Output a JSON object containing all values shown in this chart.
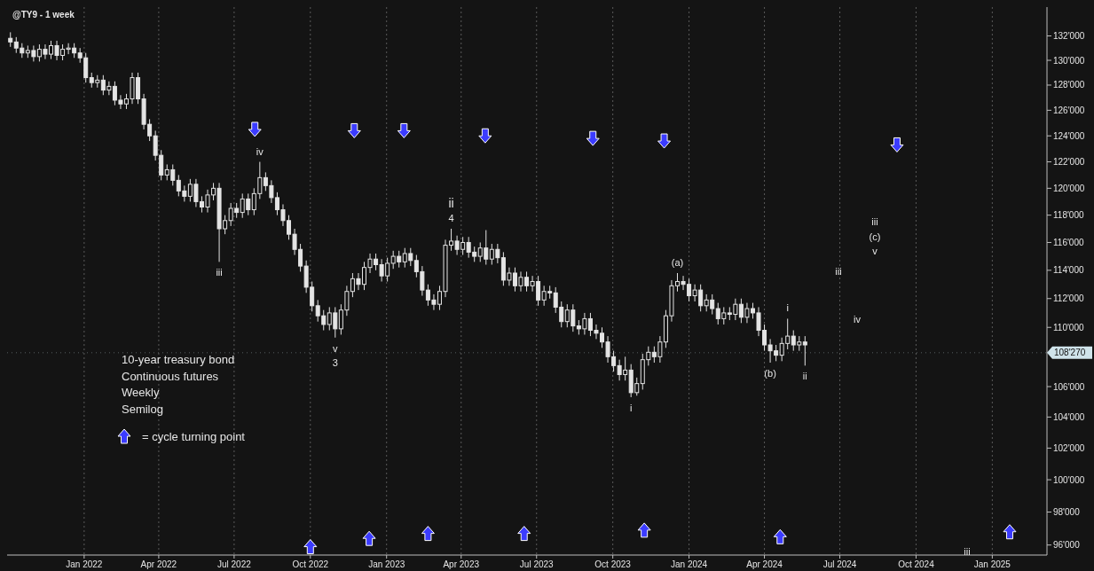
{
  "chart_data": {
    "type": "candlestick",
    "title": "@TY9 - 1 week",
    "color": "#e4e4e4",
    "log": true,
    "grid": "x",
    "legend": "bottom left",
    "x": [
      "2021-10-04",
      "2021-10-11",
      "2021-10-18",
      "2021-10-25",
      "2021-11-01",
      "2021-11-08",
      "2021-11-15",
      "2021-11-22",
      "2021-11-29",
      "2021-12-06",
      "2021-12-13",
      "2021-12-20",
      "2021-12-27",
      "2022-01-03",
      "2022-01-10",
      "2022-01-17",
      "2022-01-24",
      "2022-01-31",
      "2022-02-07",
      "2022-02-14",
      "2022-02-21",
      "2022-02-28",
      "2022-03-07",
      "2022-03-14",
      "2022-03-21",
      "2022-03-28",
      "2022-04-04",
      "2022-04-11",
      "2022-04-18",
      "2022-04-25",
      "2022-05-02",
      "2022-05-09",
      "2022-05-16",
      "2022-05-23",
      "2022-05-30",
      "2022-06-06",
      "2022-06-13",
      "2022-06-20",
      "2022-06-27",
      "2022-07-04",
      "2022-07-11",
      "2022-07-18",
      "2022-07-25",
      "2022-08-01",
      "2022-08-08",
      "2022-08-15",
      "2022-08-22",
      "2022-08-29",
      "2022-09-05",
      "2022-09-12",
      "2022-09-19",
      "2022-09-26",
      "2022-10-03",
      "2022-10-10",
      "2022-10-17",
      "2022-10-24",
      "2022-10-31",
      "2022-11-07",
      "2022-11-14",
      "2022-11-21",
      "2022-11-28",
      "2022-12-05",
      "2022-12-12",
      "2022-12-19",
      "2022-12-26",
      "2023-01-02",
      "2023-01-09",
      "2023-01-16",
      "2023-01-23",
      "2023-01-30",
      "2023-02-06",
      "2023-02-13",
      "2023-02-20",
      "2023-02-27",
      "2023-03-06",
      "2023-03-13",
      "2023-03-20",
      "2023-03-27",
      "2023-04-03",
      "2023-04-10",
      "2023-04-17",
      "2023-04-24",
      "2023-05-01",
      "2023-05-08",
      "2023-05-15",
      "2023-05-22",
      "2023-05-29",
      "2023-06-05",
      "2023-06-12",
      "2023-06-19",
      "2023-06-26",
      "2023-07-03",
      "2023-07-10",
      "2023-07-17",
      "2023-07-24",
      "2023-07-31",
      "2023-08-07",
      "2023-08-14",
      "2023-08-21",
      "2023-08-28",
      "2023-09-04",
      "2023-09-11",
      "2023-09-18",
      "2023-09-25",
      "2023-10-02",
      "2023-10-09",
      "2023-10-16",
      "2023-10-23",
      "2023-10-30",
      "2023-11-06",
      "2023-11-13",
      "2023-11-20",
      "2023-11-27",
      "2023-12-04",
      "2023-12-11",
      "2023-12-18",
      "2023-12-25",
      "2024-01-01",
      "2024-01-08",
      "2024-01-15",
      "2024-01-22",
      "2024-01-29",
      "2024-02-05",
      "2024-02-12",
      "2024-02-19",
      "2024-02-26",
      "2024-03-04",
      "2024-03-11",
      "2024-03-18",
      "2024-03-25",
      "2024-04-01",
      "2024-04-08",
      "2024-04-15",
      "2024-04-22",
      "2024-04-29",
      "2024-05-06",
      "2024-05-13",
      "2024-05-20"
    ],
    "ohlc": [
      [
        131800,
        132300,
        131100,
        131500
      ],
      [
        131500,
        131900,
        130600,
        131000
      ],
      [
        131000,
        131400,
        130200,
        130600
      ],
      [
        130600,
        131200,
        130200,
        130800
      ],
      [
        130800,
        131200,
        129900,
        130300
      ],
      [
        130300,
        131300,
        129900,
        130900
      ],
      [
        130900,
        131300,
        130100,
        130500
      ],
      [
        130500,
        131600,
        130100,
        131200
      ],
      [
        131200,
        131600,
        130000,
        130400
      ],
      [
        130400,
        131300,
        130000,
        130900
      ],
      [
        130900,
        131400,
        130500,
        131000
      ],
      [
        131000,
        131400,
        130200,
        130600
      ],
      [
        130600,
        131000,
        129800,
        130200
      ],
      [
        130200,
        130600,
        128200,
        128600
      ],
      [
        128600,
        129000,
        127800,
        128200
      ],
      [
        128200,
        128800,
        127800,
        128400
      ],
      [
        128400,
        128800,
        127200,
        127600
      ],
      [
        127600,
        128300,
        127200,
        127900
      ],
      [
        127900,
        128300,
        126400,
        126800
      ],
      [
        126800,
        127200,
        126100,
        126500
      ],
      [
        126500,
        127300,
        126100,
        126900
      ],
      [
        126900,
        129000,
        126500,
        128600
      ],
      [
        128600,
        129000,
        126500,
        126900
      ],
      [
        126900,
        127300,
        124500,
        124900
      ],
      [
        124900,
        125300,
        123600,
        124000
      ],
      [
        124000,
        124400,
        122100,
        122500
      ],
      [
        122500,
        122900,
        120600,
        121000
      ],
      [
        121000,
        121800,
        120600,
        121400
      ],
      [
        121400,
        121800,
        120200,
        120600
      ],
      [
        120600,
        121000,
        119400,
        119800
      ],
      [
        119800,
        120200,
        119000,
        119400
      ],
      [
        119400,
        120700,
        119000,
        120300
      ],
      [
        120300,
        120700,
        118600,
        119000
      ],
      [
        119000,
        119400,
        118200,
        118600
      ],
      [
        118600,
        119900,
        118200,
        119500
      ],
      [
        119500,
        120400,
        119100,
        120000
      ],
      [
        120000,
        120400,
        114600,
        117000
      ],
      [
        117000,
        118000,
        116600,
        117600
      ],
      [
        117600,
        118900,
        117200,
        118500
      ],
      [
        118500,
        118900,
        117800,
        118200
      ],
      [
        118200,
        119600,
        117800,
        119200
      ],
      [
        119200,
        119600,
        118000,
        118400
      ],
      [
        118400,
        120000,
        118000,
        119600
      ],
      [
        119600,
        122000,
        119200,
        120800
      ],
      [
        120800,
        121200,
        119800,
        120200
      ],
      [
        120200,
        120600,
        118900,
        119300
      ],
      [
        119300,
        119700,
        118000,
        118400
      ],
      [
        118400,
        118800,
        117200,
        117600
      ],
      [
        117600,
        118000,
        116200,
        116600
      ],
      [
        116600,
        117000,
        115100,
        115500
      ],
      [
        115500,
        115900,
        113900,
        114300
      ],
      [
        114300,
        114700,
        112400,
        112800
      ],
      [
        112800,
        113200,
        111100,
        111500
      ],
      [
        111500,
        111900,
        110400,
        110800
      ],
      [
        110800,
        111200,
        109800,
        110200
      ],
      [
        110200,
        111400,
        109800,
        111000
      ],
      [
        111000,
        111400,
        109300,
        109900
      ],
      [
        109900,
        111600,
        109500,
        111200
      ],
      [
        111200,
        112900,
        110800,
        112500
      ],
      [
        112500,
        113800,
        112100,
        113400
      ],
      [
        113400,
        113800,
        112600,
        113000
      ],
      [
        113000,
        114600,
        112600,
        114200
      ],
      [
        114200,
        115200,
        113800,
        114800
      ],
      [
        114800,
        115200,
        114000,
        114400
      ],
      [
        114400,
        114800,
        113200,
        113600
      ],
      [
        113600,
        114900,
        113200,
        114500
      ],
      [
        114500,
        115400,
        114100,
        115000
      ],
      [
        115000,
        115400,
        114200,
        114600
      ],
      [
        114600,
        115600,
        114200,
        115200
      ],
      [
        115200,
        115600,
        114300,
        114700
      ],
      [
        114700,
        115100,
        113500,
        113900
      ],
      [
        113900,
        114300,
        112200,
        112600
      ],
      [
        112600,
        113000,
        111500,
        111900
      ],
      [
        111900,
        112300,
        111200,
        111600
      ],
      [
        111600,
        112900,
        111200,
        112500
      ],
      [
        112500,
        116200,
        112100,
        115800
      ],
      [
        115800,
        117000,
        115400,
        116100
      ],
      [
        116100,
        116500,
        115100,
        115500
      ],
      [
        115500,
        116400,
        115100,
        116000
      ],
      [
        116000,
        116400,
        114900,
        115300
      ],
      [
        115300,
        115700,
        114600,
        115000
      ],
      [
        115000,
        116000,
        114600,
        115600
      ],
      [
        115600,
        116900,
        114400,
        114800
      ],
      [
        114800,
        115900,
        114400,
        115500
      ],
      [
        115500,
        115900,
        114500,
        114900
      ],
      [
        114900,
        115300,
        112900,
        113300
      ],
      [
        113300,
        114200,
        112900,
        113800
      ],
      [
        113800,
        114200,
        112500,
        112900
      ],
      [
        112900,
        113900,
        112500,
        113500
      ],
      [
        113500,
        113900,
        112500,
        112900
      ],
      [
        112900,
        113600,
        112500,
        113200
      ],
      [
        113200,
        113600,
        111500,
        111900
      ],
      [
        111900,
        112900,
        111500,
        112500
      ],
      [
        112500,
        112900,
        112000,
        112400
      ],
      [
        112400,
        112800,
        111000,
        111400
      ],
      [
        111400,
        111800,
        110000,
        110400
      ],
      [
        110400,
        111600,
        110000,
        111200
      ],
      [
        111200,
        111600,
        109700,
        110100
      ],
      [
        110100,
        110500,
        109500,
        109900
      ],
      [
        109900,
        111000,
        109500,
        110600
      ],
      [
        110600,
        111000,
        109400,
        109800
      ],
      [
        109800,
        110200,
        109200,
        109600
      ],
      [
        109600,
        110000,
        108600,
        109000
      ],
      [
        109000,
        109400,
        107600,
        108000
      ],
      [
        108000,
        108400,
        107000,
        107400
      ],
      [
        107400,
        107800,
        106400,
        106800
      ],
      [
        106800,
        108000,
        106400,
        107100
      ],
      [
        107100,
        107500,
        105300,
        105600
      ],
      [
        105600,
        106600,
        105400,
        106200
      ],
      [
        106200,
        108200,
        105800,
        107800
      ],
      [
        107800,
        108700,
        107400,
        108300
      ],
      [
        108300,
        108700,
        107600,
        108000
      ],
      [
        108000,
        109400,
        107600,
        109000
      ],
      [
        109000,
        111200,
        108600,
        110800
      ],
      [
        110800,
        113300,
        110400,
        112900
      ],
      [
        112900,
        113800,
        112500,
        113200
      ],
      [
        113200,
        113600,
        112600,
        113000
      ],
      [
        113000,
        113400,
        111800,
        112200
      ],
      [
        112200,
        113000,
        111800,
        112600
      ],
      [
        112600,
        113000,
        111100,
        111500
      ],
      [
        111500,
        112300,
        111100,
        111900
      ],
      [
        111900,
        112300,
        110900,
        111300
      ],
      [
        111300,
        111700,
        110200,
        110600
      ],
      [
        110600,
        111400,
        110200,
        111000
      ],
      [
        111000,
        111400,
        110500,
        110900
      ],
      [
        110900,
        112000,
        110500,
        111600
      ],
      [
        111600,
        112000,
        110300,
        110700
      ],
      [
        110700,
        111700,
        110300,
        111300
      ],
      [
        111300,
        111700,
        110600,
        111000
      ],
      [
        111000,
        111400,
        109400,
        109800
      ],
      [
        109800,
        110200,
        108400,
        108800
      ],
      [
        108800,
        109200,
        107600,
        108400
      ],
      [
        108400,
        108800,
        107700,
        108100
      ],
      [
        108100,
        109300,
        107700,
        108900
      ],
      [
        108900,
        110600,
        108500,
        109400
      ],
      [
        109400,
        109800,
        108400,
        108800
      ],
      [
        108800,
        109400,
        108400,
        109000
      ],
      [
        109000,
        109400,
        107400,
        108800
      ]
    ],
    "series": [
      {
        "type": "scatter",
        "name": "= cycle turning point",
        "color": "#3b3bff",
        "x": [
          "2022-07-26",
          "2022-11-23",
          "2023-01-22",
          "2023-04-30",
          "2023-09-07",
          "2023-12-02",
          "2024-09-08",
          "2022-10-01",
          "2022-12-11",
          "2023-02-20",
          "2023-06-16",
          "2023-11-08",
          "2024-04-20",
          "2025-01-22"
        ],
        "values": [
          124500,
          124400,
          124400,
          124000,
          123800,
          123600,
          123300,
          95900,
          96400,
          96700,
          96700,
          96900,
          96500,
          96800
        ]
      }
    ],
    "xlim": [
      "2021-09-30",
      "2025-03-08"
    ],
    "xticks": [
      {
        "value": "2022-01",
        "label": "Jan 2022"
      },
      {
        "value": "2022-04",
        "label": "Apr 2022"
      },
      {
        "value": "2022-07",
        "label": "Jul 2022"
      },
      {
        "value": "2022-10",
        "label": "Oct 2022"
      },
      {
        "value": "2023-01",
        "label": "Jan 2023"
      },
      {
        "value": "2023-04",
        "label": "Apr 2023"
      },
      {
        "value": "2023-07",
        "label": "Jul 2023"
      },
      {
        "value": "2023-10",
        "label": "Oct 2023"
      },
      {
        "value": "2024-01",
        "label": "Jan 2024"
      },
      {
        "value": "2024-04",
        "label": "Apr 2024"
      },
      {
        "value": "2024-07",
        "label": "Jul 2024"
      },
      {
        "value": "2024-10",
        "label": "Oct 2024"
      },
      {
        "value": "2025-01",
        "label": "Jan 2025"
      }
    ],
    "ylim": [
      95400,
      134400
    ],
    "yticks": [
      {
        "value": 96000,
        "label": "96'000"
      },
      {
        "value": 98000,
        "label": "98'000"
      },
      {
        "value": 100000,
        "label": "100'000"
      },
      {
        "value": 102000,
        "label": "102'000"
      },
      {
        "value": 104000,
        "label": "104'000"
      },
      {
        "value": 106000,
        "label": "106'000"
      },
      {
        "value": 110000,
        "label": "110'000"
      },
      {
        "value": 112000,
        "label": "112'000"
      },
      {
        "value": 114000,
        "label": "114'000"
      },
      {
        "value": 116000,
        "label": "116'000"
      },
      {
        "value": 118000,
        "label": "118'000"
      },
      {
        "value": 120000,
        "label": "120'000"
      },
      {
        "value": 122000,
        "label": "122'000"
      },
      {
        "value": 124000,
        "label": "124'000"
      },
      {
        "value": 126000,
        "label": "126'000"
      },
      {
        "value": 128000,
        "label": "128'000"
      },
      {
        "value": 130000,
        "label": "130'000"
      },
      {
        "value": 132000,
        "label": "132'000"
      }
    ],
    "ref_lines": [
      {
        "axis": "y",
        "value": 108270,
        "label": "108'270",
        "color": "#cfe3ea"
      }
    ],
    "annotations": [
      "10-year treasury bond",
      "Continuous futures",
      "Weekly",
      "Semilog",
      {
        "text": "iii",
        "x": "2022-06-13",
        "y": 114600
      },
      {
        "text": "iv",
        "x": "2022-08-01",
        "y": 122000
      },
      {
        "text": "v",
        "x": "2022-10-31",
        "y": 109300
      },
      {
        "text": "3",
        "x": "2022-10-31",
        "y": 109300
      },
      {
        "text": "4",
        "x": "2023-03-20",
        "y": 117000
      },
      {
        "text": "ii",
        "x": "2023-03-20",
        "y": 117000
      },
      {
        "text": "i",
        "x": "2023-10-23",
        "y": 105300
      },
      {
        "text": "(a)",
        "x": "2023-12-18",
        "y": 113800
      },
      {
        "text": "(b)",
        "x": "2024-04-08",
        "y": 107600
      },
      {
        "text": "i",
        "x": "2024-04-29",
        "y": 110600
      },
      {
        "text": "ii",
        "x": "2024-05-20",
        "y": 107400
      },
      "iii",
      "iv",
      "iii",
      "(c)",
      "v",
      "iii"
    ]
  }
}
